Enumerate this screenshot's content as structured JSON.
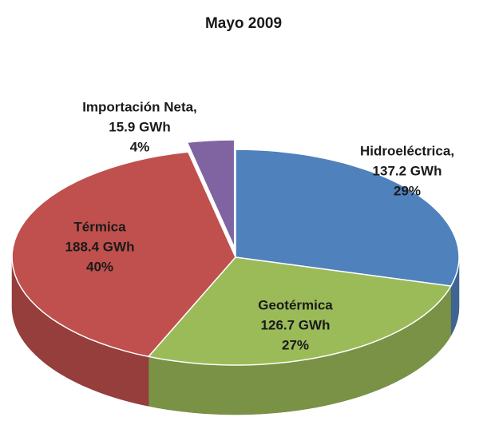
{
  "chart_data": {
    "type": "pie3d",
    "title": "Mayo 2009",
    "categories": [
      "Hidroeléctrica,",
      "Geotérmica",
      "Térmica",
      "Importación Neta,"
    ],
    "values": [
      137.2,
      126.7,
      188.4,
      15.9
    ],
    "value_labels": [
      "137.2 GWh",
      "126.7 GWh",
      "188.4 GWh",
      "15.9 GWh"
    ],
    "percentages": [
      29,
      27,
      40,
      4
    ],
    "percentage_labels": [
      "29%",
      "27%",
      "40%",
      "4%"
    ],
    "colors": [
      "#4f81bd",
      "#9bbb59",
      "#c0504d",
      "#8064a2"
    ],
    "exploded": [
      false,
      false,
      false,
      true
    ]
  }
}
